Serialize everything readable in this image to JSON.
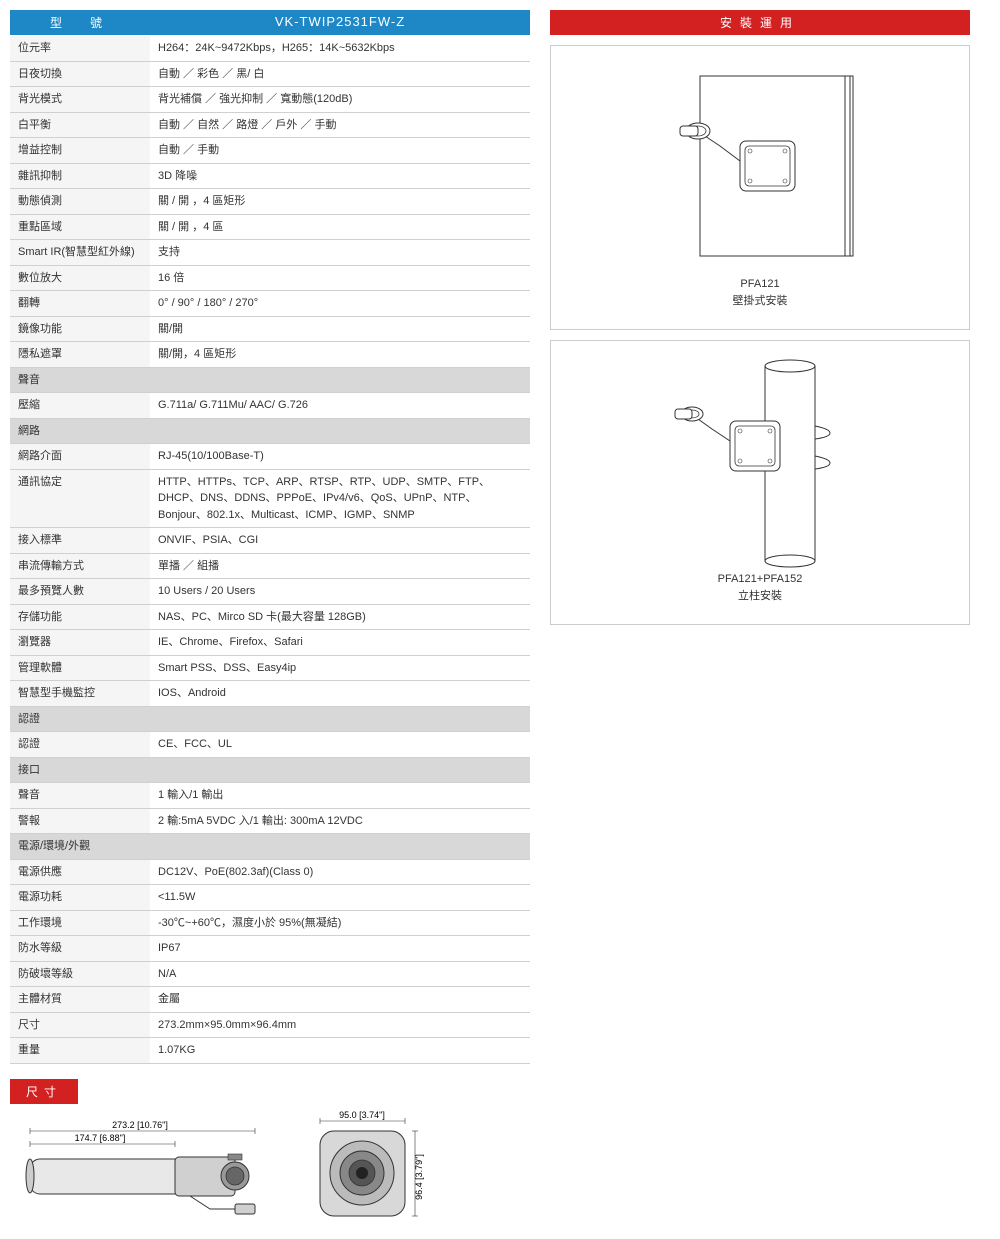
{
  "header": {
    "label": "型　號",
    "model": "VK-TWIP2531FW-Z"
  },
  "specs": [
    {
      "label": "位元率",
      "value": "H264：24K~9472Kbps，H265：14K~5632Kbps"
    },
    {
      "label": "日夜切換",
      "value": "自動 ／ 彩色 ／ 黑/ 白"
    },
    {
      "label": "背光模式",
      "value": "背光補償 ／ 強光抑制 ／ 寬動態(120dB)"
    },
    {
      "label": "白平衡",
      "value": "自動 ／ 自然 ／ 路燈 ／ 戶外 ／ 手動"
    },
    {
      "label": "增益控制",
      "value": "自動 ／ 手動"
    },
    {
      "label": "雜訊抑制",
      "value": "3D 降噪"
    },
    {
      "label": "動態偵測",
      "value": "關 / 開 ，4 區矩形"
    },
    {
      "label": "重點區域",
      "value": "關 / 開 ，4 區"
    },
    {
      "label": "Smart IR(智慧型紅外線)",
      "value": "支持"
    },
    {
      "label": "數位放大",
      "value": "16 倍"
    },
    {
      "label": "翻轉",
      "value": "0° / 90° / 180° / 270°"
    },
    {
      "label": "鏡像功能",
      "value": "關/開"
    },
    {
      "label": "隱私遮罩",
      "value": "關/開，4 區矩形"
    },
    {
      "section": "聲音"
    },
    {
      "label": "壓縮",
      "value": "G.711a/ G.711Mu/ AAC/ G.726"
    },
    {
      "section": "網路"
    },
    {
      "label": "網路介面",
      "value": "RJ-45(10/100Base-T)"
    },
    {
      "label": "通訊協定",
      "value": "HTTP、HTTPs、TCP、ARP、RTSP、RTP、UDP、SMTP、FTP、DHCP、DNS、DDNS、PPPoE、IPv4/v6、QoS、UPnP、NTP、Bonjour、802.1x、Multicast、ICMP、IGMP、SNMP"
    },
    {
      "label": "接入標準",
      "value": "ONVIF、PSIA、CGI"
    },
    {
      "label": "串流傳輸方式",
      "value": "單播 ／ 組播"
    },
    {
      "label": "最多預覽人數",
      "value": "10 Users / 20 Users"
    },
    {
      "label": "存儲功能",
      "value": "NAS、PC、Mirco SD 卡(最大容量 128GB)"
    },
    {
      "label": "瀏覽器",
      "value": "IE、Chrome、Firefox、Safari"
    },
    {
      "label": "管理軟體",
      "value": "Smart PSS、DSS、Easy4ip"
    },
    {
      "label": "智慧型手機監控",
      "value": "IOS、Android"
    },
    {
      "section": "認證"
    },
    {
      "label": "認證",
      "value": "CE、FCC、UL"
    },
    {
      "section": "接口"
    },
    {
      "label": "聲音",
      "value": "1 輸入/1 輸出"
    },
    {
      "label": "警報",
      "value": "2 輸:5mA 5VDC 入/1 輸出: 300mA 12VDC"
    },
    {
      "section": "電源/環境/外觀"
    },
    {
      "label": "電源供應",
      "value": "DC12V、PoE(802.3af)(Class 0)"
    },
    {
      "label": "電源功耗",
      "value": "<11.5W"
    },
    {
      "label": "工作環境",
      "value": "-30℃~+60℃，濕度小於 95%(無凝結)"
    },
    {
      "label": "防水等級",
      "value": "IP67"
    },
    {
      "label": "防破壞等級",
      "value": "N/A"
    },
    {
      "label": "主體材質",
      "value": "金屬"
    },
    {
      "label": "尺寸",
      "value": "273.2mm×95.0mm×96.4mm"
    },
    {
      "label": "重量",
      "value": "1.07KG"
    }
  ],
  "install": {
    "header": "安裝運用",
    "blocks": [
      {
        "caption_line1": "PFA121",
        "caption_line2": "壁掛式安裝"
      },
      {
        "caption_line1": "PFA121+PFA152",
        "caption_line2": "立柱安裝"
      }
    ]
  },
  "dimensions": {
    "label": "尺寸",
    "side_total": "273.2 [10.76\"]",
    "side_partial": "174.7 [6.88\"]",
    "front_width": "95.0 [3.74\"]",
    "front_height": "96.4 [3.79\"]"
  },
  "colors": {
    "header_blue": "#1e88c7",
    "header_red": "#d32020",
    "row_alt": "#f5f5f5",
    "section_bg": "#d8d8d8",
    "border": "#d0d0d0"
  }
}
